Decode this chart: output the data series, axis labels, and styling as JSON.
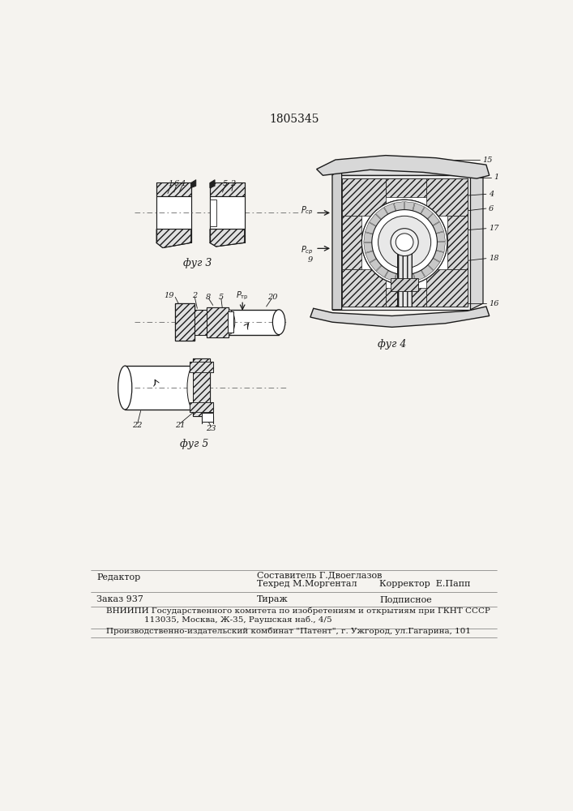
{
  "patent_number": "1805345",
  "bg": "#f5f3ef",
  "lc": "#1a1a1a",
  "fig3_label": "фуг 3",
  "fig4_label": "фуг 4",
  "fig5_label": "фуг 5"
}
